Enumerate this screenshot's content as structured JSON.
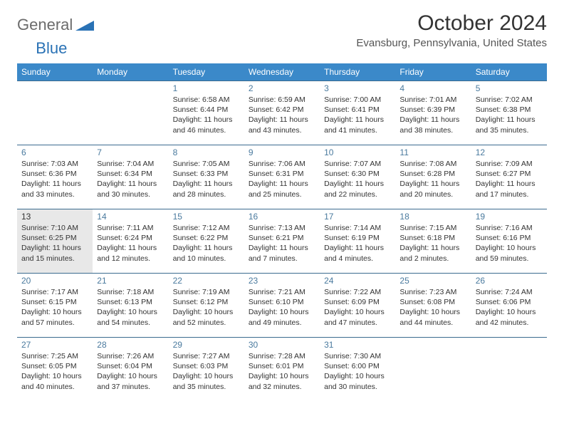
{
  "logo": {
    "general": "General",
    "blue": "Blue"
  },
  "title": "October 2024",
  "location": "Evansburg, Pennsylvania, United States",
  "colors": {
    "header_bg": "#3b89c9",
    "header_fg": "#ffffff",
    "row_border": "#3b6b8f",
    "daynum": "#4a7a9e",
    "highlight_bg": "#e8e8e8",
    "logo_gray": "#6b6b6b",
    "logo_blue": "#2a72b5"
  },
  "weekdays": [
    "Sunday",
    "Monday",
    "Tuesday",
    "Wednesday",
    "Thursday",
    "Friday",
    "Saturday"
  ],
  "weeks": [
    [
      null,
      null,
      {
        "day": "1",
        "sunrise": "Sunrise: 6:58 AM",
        "sunset": "Sunset: 6:44 PM",
        "dl1": "Daylight: 11 hours",
        "dl2": "and 46 minutes."
      },
      {
        "day": "2",
        "sunrise": "Sunrise: 6:59 AM",
        "sunset": "Sunset: 6:42 PM",
        "dl1": "Daylight: 11 hours",
        "dl2": "and 43 minutes."
      },
      {
        "day": "3",
        "sunrise": "Sunrise: 7:00 AM",
        "sunset": "Sunset: 6:41 PM",
        "dl1": "Daylight: 11 hours",
        "dl2": "and 41 minutes."
      },
      {
        "day": "4",
        "sunrise": "Sunrise: 7:01 AM",
        "sunset": "Sunset: 6:39 PM",
        "dl1": "Daylight: 11 hours",
        "dl2": "and 38 minutes."
      },
      {
        "day": "5",
        "sunrise": "Sunrise: 7:02 AM",
        "sunset": "Sunset: 6:38 PM",
        "dl1": "Daylight: 11 hours",
        "dl2": "and 35 minutes."
      }
    ],
    [
      {
        "day": "6",
        "sunrise": "Sunrise: 7:03 AM",
        "sunset": "Sunset: 6:36 PM",
        "dl1": "Daylight: 11 hours",
        "dl2": "and 33 minutes."
      },
      {
        "day": "7",
        "sunrise": "Sunrise: 7:04 AM",
        "sunset": "Sunset: 6:34 PM",
        "dl1": "Daylight: 11 hours",
        "dl2": "and 30 minutes."
      },
      {
        "day": "8",
        "sunrise": "Sunrise: 7:05 AM",
        "sunset": "Sunset: 6:33 PM",
        "dl1": "Daylight: 11 hours",
        "dl2": "and 28 minutes."
      },
      {
        "day": "9",
        "sunrise": "Sunrise: 7:06 AM",
        "sunset": "Sunset: 6:31 PM",
        "dl1": "Daylight: 11 hours",
        "dl2": "and 25 minutes."
      },
      {
        "day": "10",
        "sunrise": "Sunrise: 7:07 AM",
        "sunset": "Sunset: 6:30 PM",
        "dl1": "Daylight: 11 hours",
        "dl2": "and 22 minutes."
      },
      {
        "day": "11",
        "sunrise": "Sunrise: 7:08 AM",
        "sunset": "Sunset: 6:28 PM",
        "dl1": "Daylight: 11 hours",
        "dl2": "and 20 minutes."
      },
      {
        "day": "12",
        "sunrise": "Sunrise: 7:09 AM",
        "sunset": "Sunset: 6:27 PM",
        "dl1": "Daylight: 11 hours",
        "dl2": "and 17 minutes."
      }
    ],
    [
      {
        "day": "13",
        "highlight": true,
        "sunrise": "Sunrise: 7:10 AM",
        "sunset": "Sunset: 6:25 PM",
        "dl1": "Daylight: 11 hours",
        "dl2": "and 15 minutes."
      },
      {
        "day": "14",
        "sunrise": "Sunrise: 7:11 AM",
        "sunset": "Sunset: 6:24 PM",
        "dl1": "Daylight: 11 hours",
        "dl2": "and 12 minutes."
      },
      {
        "day": "15",
        "sunrise": "Sunrise: 7:12 AM",
        "sunset": "Sunset: 6:22 PM",
        "dl1": "Daylight: 11 hours",
        "dl2": "and 10 minutes."
      },
      {
        "day": "16",
        "sunrise": "Sunrise: 7:13 AM",
        "sunset": "Sunset: 6:21 PM",
        "dl1": "Daylight: 11 hours",
        "dl2": "and 7 minutes."
      },
      {
        "day": "17",
        "sunrise": "Sunrise: 7:14 AM",
        "sunset": "Sunset: 6:19 PM",
        "dl1": "Daylight: 11 hours",
        "dl2": "and 4 minutes."
      },
      {
        "day": "18",
        "sunrise": "Sunrise: 7:15 AM",
        "sunset": "Sunset: 6:18 PM",
        "dl1": "Daylight: 11 hours",
        "dl2": "and 2 minutes."
      },
      {
        "day": "19",
        "sunrise": "Sunrise: 7:16 AM",
        "sunset": "Sunset: 6:16 PM",
        "dl1": "Daylight: 10 hours",
        "dl2": "and 59 minutes."
      }
    ],
    [
      {
        "day": "20",
        "sunrise": "Sunrise: 7:17 AM",
        "sunset": "Sunset: 6:15 PM",
        "dl1": "Daylight: 10 hours",
        "dl2": "and 57 minutes."
      },
      {
        "day": "21",
        "sunrise": "Sunrise: 7:18 AM",
        "sunset": "Sunset: 6:13 PM",
        "dl1": "Daylight: 10 hours",
        "dl2": "and 54 minutes."
      },
      {
        "day": "22",
        "sunrise": "Sunrise: 7:19 AM",
        "sunset": "Sunset: 6:12 PM",
        "dl1": "Daylight: 10 hours",
        "dl2": "and 52 minutes."
      },
      {
        "day": "23",
        "sunrise": "Sunrise: 7:21 AM",
        "sunset": "Sunset: 6:10 PM",
        "dl1": "Daylight: 10 hours",
        "dl2": "and 49 minutes."
      },
      {
        "day": "24",
        "sunrise": "Sunrise: 7:22 AM",
        "sunset": "Sunset: 6:09 PM",
        "dl1": "Daylight: 10 hours",
        "dl2": "and 47 minutes."
      },
      {
        "day": "25",
        "sunrise": "Sunrise: 7:23 AM",
        "sunset": "Sunset: 6:08 PM",
        "dl1": "Daylight: 10 hours",
        "dl2": "and 44 minutes."
      },
      {
        "day": "26",
        "sunrise": "Sunrise: 7:24 AM",
        "sunset": "Sunset: 6:06 PM",
        "dl1": "Daylight: 10 hours",
        "dl2": "and 42 minutes."
      }
    ],
    [
      {
        "day": "27",
        "sunrise": "Sunrise: 7:25 AM",
        "sunset": "Sunset: 6:05 PM",
        "dl1": "Daylight: 10 hours",
        "dl2": "and 40 minutes."
      },
      {
        "day": "28",
        "sunrise": "Sunrise: 7:26 AM",
        "sunset": "Sunset: 6:04 PM",
        "dl1": "Daylight: 10 hours",
        "dl2": "and 37 minutes."
      },
      {
        "day": "29",
        "sunrise": "Sunrise: 7:27 AM",
        "sunset": "Sunset: 6:03 PM",
        "dl1": "Daylight: 10 hours",
        "dl2": "and 35 minutes."
      },
      {
        "day": "30",
        "sunrise": "Sunrise: 7:28 AM",
        "sunset": "Sunset: 6:01 PM",
        "dl1": "Daylight: 10 hours",
        "dl2": "and 32 minutes."
      },
      {
        "day": "31",
        "sunrise": "Sunrise: 7:30 AM",
        "sunset": "Sunset: 6:00 PM",
        "dl1": "Daylight: 10 hours",
        "dl2": "and 30 minutes."
      },
      null,
      null
    ]
  ]
}
